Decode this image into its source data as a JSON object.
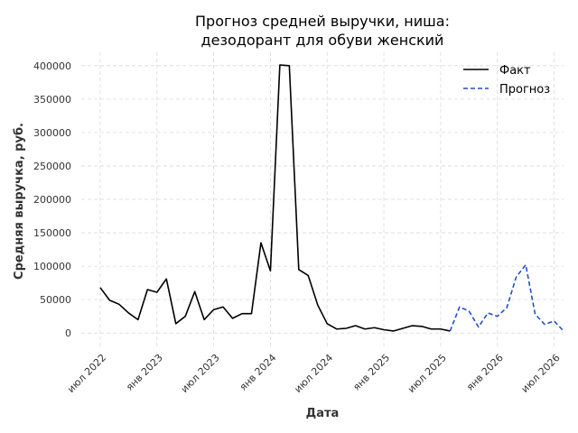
{
  "chart_data": {
    "type": "line",
    "title_lines": [
      "Прогноз средней выручки, ниша:",
      "дезодорант для обуви женский"
    ],
    "xlabel": "Дата",
    "ylabel": "Средняя выручка, руб.",
    "x_ticks": [
      "июл 2022",
      "янв 2023",
      "июл 2023",
      "янв 2024",
      "июл 2024",
      "янв 2025",
      "июл 2025",
      "янв 2026",
      "июл 2026"
    ],
    "y_ticks": [
      "0",
      "50000",
      "100000",
      "150000",
      "200000",
      "250000",
      "300000",
      "350000",
      "400000"
    ],
    "ylim": [
      -20000,
      420000
    ],
    "xlim": [
      "2022-05",
      "2026-08"
    ],
    "grid": true,
    "legend_position": "top-right",
    "series": [
      {
        "name": "Факт",
        "color": "#000000",
        "dashed": false,
        "points": [
          [
            "2022-07",
            68000
          ],
          [
            "2022-08",
            49000
          ],
          [
            "2022-09",
            43000
          ],
          [
            "2022-10",
            30000
          ],
          [
            "2022-11",
            20000
          ],
          [
            "2022-12",
            65000
          ],
          [
            "2023-01",
            61000
          ],
          [
            "2023-02",
            81000
          ],
          [
            "2023-03",
            14000
          ],
          [
            "2023-04",
            25000
          ],
          [
            "2023-05",
            62000
          ],
          [
            "2023-06",
            20000
          ],
          [
            "2023-07",
            35000
          ],
          [
            "2023-08",
            39000
          ],
          [
            "2023-09",
            22000
          ],
          [
            "2023-10",
            29000
          ],
          [
            "2023-11",
            29000
          ],
          [
            "2023-12",
            135000
          ],
          [
            "2024-01",
            93000
          ],
          [
            "2024-02",
            401000
          ],
          [
            "2024-03",
            400000
          ],
          [
            "2024-04",
            95000
          ],
          [
            "2024-05",
            86000
          ],
          [
            "2024-06",
            42000
          ],
          [
            "2024-07",
            14000
          ],
          [
            "2024-08",
            6000
          ],
          [
            "2024-09",
            7000
          ],
          [
            "2024-10",
            11000
          ],
          [
            "2024-11",
            6000
          ],
          [
            "2024-12",
            8000
          ],
          [
            "2025-01",
            5000
          ],
          [
            "2025-02",
            3000
          ],
          [
            "2025-03",
            7000
          ],
          [
            "2025-04",
            11000
          ],
          [
            "2025-05",
            10000
          ],
          [
            "2025-06",
            6000
          ],
          [
            "2025-07",
            6000
          ],
          [
            "2025-08",
            3000
          ]
        ]
      },
      {
        "name": "Прогноз",
        "color": "#1f4fd1",
        "dashed": true,
        "points": [
          [
            "2025-08",
            3000
          ],
          [
            "2025-09",
            39000
          ],
          [
            "2025-10",
            33000
          ],
          [
            "2025-11",
            9000
          ],
          [
            "2025-12",
            30000
          ],
          [
            "2026-01",
            25000
          ],
          [
            "2026-02",
            38000
          ],
          [
            "2026-03",
            84000
          ],
          [
            "2026-04",
            102000
          ],
          [
            "2026-05",
            28000
          ],
          [
            "2026-06",
            13000
          ],
          [
            "2026-07",
            18000
          ],
          [
            "2026-08",
            3000
          ]
        ]
      }
    ]
  }
}
